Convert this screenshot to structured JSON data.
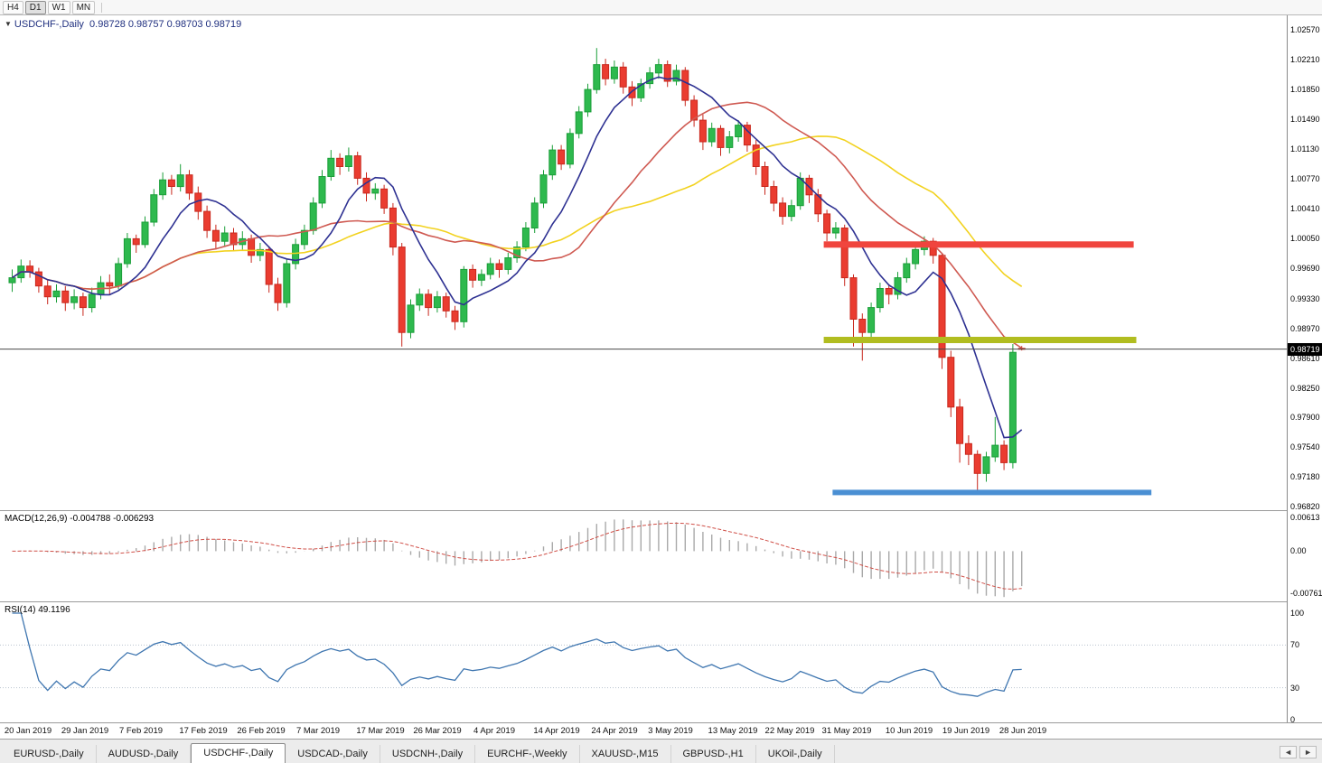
{
  "toolbar": {
    "timeframe_buttons": [
      {
        "label": "H4",
        "active": false
      },
      {
        "label": "D1",
        "active": true
      },
      {
        "label": "W1",
        "active": false
      },
      {
        "label": "MN",
        "active": false
      }
    ]
  },
  "chart_header": {
    "collapse_icon": "▼",
    "title": "USDCHF-,Daily",
    "ohlc": "0.98728 0.98757 0.98703 0.98719"
  },
  "price_axis": {
    "labels": [
      "1.02570",
      "1.02210",
      "1.01850",
      "1.01490",
      "1.01130",
      "1.00770",
      "1.00410",
      "1.00050",
      "0.99690",
      "0.99330",
      "0.98970",
      "0.98610",
      "0.98250",
      "0.97900",
      "0.97540",
      "0.97180",
      "0.96820"
    ],
    "current_price": "0.98719"
  },
  "macd_panel": {
    "label": "MACD(12,26,9) -0.004788 -0.006293",
    "axis_labels": [
      "0.00613",
      "0.00",
      "-0.007612"
    ],
    "axis_values": [
      0.00613,
      0,
      -0.007612
    ]
  },
  "rsi_panel": {
    "label": "RSI(14) 49.1196",
    "axis_labels": [
      "100",
      "70",
      "30",
      "0"
    ],
    "axis_values": [
      100,
      70,
      30,
      0
    ],
    "levels": [
      70,
      30
    ]
  },
  "tabs": {
    "items": [
      {
        "label": "EURUSD-,Daily",
        "active": false
      },
      {
        "label": "AUDUSD-,Daily",
        "active": false
      },
      {
        "label": "USDCHF-,Daily",
        "active": true
      },
      {
        "label": "USDCAD-,Daily",
        "active": false
      },
      {
        "label": "USDCNH-,Daily",
        "active": false
      },
      {
        "label": "EURCHF-,Weekly",
        "active": false
      },
      {
        "label": "XAUUSD-,M15",
        "active": false
      },
      {
        "label": "GBPUSD-,H1",
        "active": false
      },
      {
        "label": "UKOil-,Daily",
        "active": false
      }
    ],
    "scroll_left": "◄",
    "scroll_right": "►"
  },
  "chart_data": {
    "type": "candlestick",
    "symbol": "USDCHF",
    "timeframe": "Daily",
    "current_price": 0.98719,
    "price_range": {
      "max": 1.02744,
      "min": 0.96777
    },
    "candles": [
      [
        0.9952,
        0.9968,
        0.9941,
        0.9958
      ],
      [
        0.9958,
        0.998,
        0.9952,
        0.9972
      ],
      [
        0.9972,
        0.9979,
        0.9958,
        0.9965
      ],
      [
        0.9965,
        0.997,
        0.994,
        0.9948
      ],
      [
        0.9948,
        0.9955,
        0.9926,
        0.9935
      ],
      [
        0.9935,
        0.995,
        0.9928,
        0.9942
      ],
      [
        0.9942,
        0.9948,
        0.9918,
        0.9928
      ],
      [
        0.9928,
        0.9944,
        0.992,
        0.9935
      ],
      [
        0.9935,
        0.994,
        0.9912,
        0.9922
      ],
      [
        0.9922,
        0.9946,
        0.9916,
        0.9938
      ],
      [
        0.9938,
        0.996,
        0.9932,
        0.9952
      ],
      [
        0.9952,
        0.9962,
        0.9938,
        0.9948
      ],
      [
        0.9948,
        0.9982,
        0.9944,
        0.9975
      ],
      [
        0.9975,
        1.0012,
        0.997,
        1.0005
      ],
      [
        1.0005,
        1.001,
        0.9988,
        0.9998
      ],
      [
        0.9998,
        1.0032,
        0.9994,
        1.0025
      ],
      [
        1.0025,
        1.0065,
        1.002,
        1.0058
      ],
      [
        1.0058,
        1.0085,
        1.0052,
        1.0076
      ],
      [
        1.0076,
        1.0082,
        1.0058,
        1.0068
      ],
      [
        1.0068,
        1.0095,
        1.0062,
        1.0082
      ],
      [
        1.0082,
        1.0088,
        1.0052,
        1.006
      ],
      [
        1.006,
        1.0068,
        1.0028,
        1.0038
      ],
      [
        1.0038,
        1.0045,
        1.0006,
        1.0015
      ],
      [
        1.0015,
        1.0022,
        0.9992,
        1.0002
      ],
      [
        1.0002,
        1.002,
        0.9996,
        1.0012
      ],
      [
        1.0012,
        1.0018,
        0.999,
        0.9998
      ],
      [
        0.9998,
        1.0014,
        0.9992,
        1.0005
      ],
      [
        1.0005,
        1.001,
        0.9976,
        0.9985
      ],
      [
        0.9985,
        1.0,
        0.9978,
        0.9992
      ],
      [
        0.9992,
        0.9996,
        0.994,
        0.995
      ],
      [
        0.995,
        0.9958,
        0.9918,
        0.9928
      ],
      [
        0.9928,
        0.998,
        0.9922,
        0.9975
      ],
      [
        0.9975,
        1.0005,
        0.9968,
        0.9998
      ],
      [
        0.9998,
        1.0022,
        0.9992,
        1.0015
      ],
      [
        1.0015,
        1.0055,
        1.001,
        1.0048
      ],
      [
        1.0048,
        1.0088,
        1.0042,
        1.008
      ],
      [
        1.008,
        1.0112,
        1.0075,
        1.0102
      ],
      [
        1.0102,
        1.0108,
        1.0082,
        1.0092
      ],
      [
        1.0092,
        1.0115,
        1.0086,
        1.0105
      ],
      [
        1.0105,
        1.011,
        1.007,
        1.0078
      ],
      [
        1.0078,
        1.0085,
        1.005,
        1.006
      ],
      [
        1.006,
        1.0072,
        1.0052,
        1.0065
      ],
      [
        1.0065,
        1.007,
        1.0035,
        1.0042
      ],
      [
        1.0042,
        1.0048,
        0.9985,
        0.9995
      ],
      [
        0.9995,
        1.0,
        0.9875,
        0.9892
      ],
      [
        0.9892,
        0.9932,
        0.9885,
        0.9925
      ],
      [
        0.9925,
        0.9945,
        0.9918,
        0.9938
      ],
      [
        0.9938,
        0.9944,
        0.9912,
        0.9922
      ],
      [
        0.9922,
        0.9942,
        0.9916,
        0.9935
      ],
      [
        0.9935,
        0.994,
        0.991,
        0.9918
      ],
      [
        0.9918,
        0.9924,
        0.9895,
        0.9905
      ],
      [
        0.9905,
        0.9972,
        0.9898,
        0.9968
      ],
      [
        0.9968,
        0.9974,
        0.9946,
        0.9955
      ],
      [
        0.9955,
        0.9968,
        0.9948,
        0.9962
      ],
      [
        0.9962,
        0.9982,
        0.9956,
        0.9975
      ],
      [
        0.9975,
        0.998,
        0.9958,
        0.9968
      ],
      [
        0.9968,
        0.9988,
        0.9962,
        0.9982
      ],
      [
        0.9982,
        1.0002,
        0.9976,
        0.9995
      ],
      [
        0.9995,
        1.0025,
        0.999,
        1.0018
      ],
      [
        1.0018,
        1.0055,
        1.0012,
        1.0048
      ],
      [
        1.0048,
        1.0088,
        1.0042,
        1.0082
      ],
      [
        1.0082,
        1.0118,
        1.0076,
        1.0112
      ],
      [
        1.0112,
        1.0118,
        1.0088,
        1.0095
      ],
      [
        1.0095,
        1.0138,
        1.009,
        1.0132
      ],
      [
        1.0132,
        1.0165,
        1.0126,
        1.0158
      ],
      [
        1.0158,
        1.0192,
        1.0152,
        1.0185
      ],
      [
        1.0185,
        1.0235,
        1.018,
        1.0215
      ],
      [
        1.0215,
        1.0222,
        1.019,
        1.0198
      ],
      [
        1.0198,
        1.022,
        1.0192,
        1.0212
      ],
      [
        1.0212,
        1.0218,
        1.018,
        1.0188
      ],
      [
        1.0188,
        1.0195,
        1.0165,
        1.0175
      ],
      [
        1.0175,
        1.0198,
        1.017,
        1.0192
      ],
      [
        1.0192,
        1.0212,
        1.0186,
        1.0205
      ],
      [
        1.0205,
        1.0222,
        1.0198,
        1.0215
      ],
      [
        1.0215,
        1.022,
        1.0188,
        1.0195
      ],
      [
        1.0195,
        1.0215,
        1.019,
        1.0208
      ],
      [
        1.0208,
        1.0212,
        1.0165,
        1.0172
      ],
      [
        1.0172,
        1.0178,
        1.014,
        1.0148
      ],
      [
        1.0148,
        1.0155,
        1.0112,
        1.0122
      ],
      [
        1.0122,
        1.0145,
        1.0116,
        1.0138
      ],
      [
        1.0138,
        1.0142,
        1.0105,
        1.0115
      ],
      [
        1.0115,
        1.0135,
        1.0108,
        1.0128
      ],
      [
        1.0128,
        1.0148,
        1.0122,
        1.0142
      ],
      [
        1.0142,
        1.0146,
        1.011,
        1.0118
      ],
      [
        1.0118,
        1.0124,
        1.0082,
        1.0092
      ],
      [
        1.0092,
        1.0098,
        1.0058,
        1.0068
      ],
      [
        1.0068,
        1.0075,
        1.0038,
        1.0048
      ],
      [
        1.0048,
        1.0055,
        1.0022,
        1.0032
      ],
      [
        1.0032,
        1.0052,
        1.0026,
        1.0045
      ],
      [
        1.0045,
        1.0085,
        1.004,
        1.0078
      ],
      [
        1.0078,
        1.0082,
        1.0048,
        1.0058
      ],
      [
        1.0058,
        1.0065,
        1.0025,
        1.0035
      ],
      [
        1.0035,
        1.004,
        1.0002,
        1.0012
      ],
      [
        1.0012,
        1.0025,
        1.0005,
        1.0018
      ],
      [
        1.0018,
        1.0022,
        0.9948,
        0.9958
      ],
      [
        0.9958,
        0.9962,
        0.9875,
        0.9908
      ],
      [
        0.9908,
        0.9915,
        0.9858,
        0.9892
      ],
      [
        0.9892,
        0.9928,
        0.9886,
        0.9922
      ],
      [
        0.9922,
        0.9952,
        0.9916,
        0.9945
      ],
      [
        0.9945,
        0.995,
        0.9926,
        0.9938
      ],
      [
        0.9938,
        0.9965,
        0.9932,
        0.9958
      ],
      [
        0.9958,
        0.9982,
        0.9952,
        0.9975
      ],
      [
        0.9975,
        0.9998,
        0.9968,
        0.9992
      ],
      [
        0.9992,
        1.0008,
        0.9985,
        1.0002
      ],
      [
        1.0002,
        1.0006,
        0.9975,
        0.9985
      ],
      [
        0.9985,
        0.9988,
        0.9848,
        0.9862
      ],
      [
        0.9862,
        0.987,
        0.979,
        0.9802
      ],
      [
        0.9802,
        0.9812,
        0.9735,
        0.9758
      ],
      [
        0.9758,
        0.9768,
        0.9732,
        0.9745
      ],
      [
        0.9745,
        0.975,
        0.9697,
        0.9722
      ],
      [
        0.9722,
        0.9748,
        0.9712,
        0.9742
      ],
      [
        0.9742,
        0.979,
        0.9736,
        0.9756
      ],
      [
        0.9756,
        0.9762,
        0.9726,
        0.9735
      ],
      [
        0.9735,
        0.9878,
        0.9728,
        0.9868
      ],
      [
        0.98728,
        0.98757,
        0.98703,
        0.98719
      ]
    ],
    "date_labels": [
      {
        "label": "20 Jan 2019",
        "i": 1.8
      },
      {
        "label": "29 Jan 2019",
        "i": 8.2
      },
      {
        "label": "7 Feb 2019",
        "i": 14.5
      },
      {
        "label": "17 Feb 2019",
        "i": 21.6
      },
      {
        "label": "26 Feb 2019",
        "i": 28.1
      },
      {
        "label": "7 Mar 2019",
        "i": 34.5
      },
      {
        "label": "17 Mar 2019",
        "i": 41.6
      },
      {
        "label": "26 Mar 2019",
        "i": 48.0
      },
      {
        "label": "4 Apr 2019",
        "i": 54.4
      },
      {
        "label": "14 Apr 2019",
        "i": 61.5
      },
      {
        "label": "24 Apr 2019",
        "i": 68.0
      },
      {
        "label": "3 May 2019",
        "i": 74.3
      },
      {
        "label": "13 May 2019",
        "i": 81.4
      },
      {
        "label": "22 May 2019",
        "i": 87.8
      },
      {
        "label": "31 May 2019",
        "i": 94.2
      },
      {
        "label": "10 Jun 2019",
        "i": 101.3
      },
      {
        "label": "19 Jun 2019",
        "i": 107.7
      },
      {
        "label": "28 Jun 2019",
        "i": 114.1
      }
    ],
    "horizontal_levels": [
      {
        "name": "resistance-line-red",
        "price": 0.9998,
        "color": "#f0453e",
        "from": 92,
        "to": 127,
        "thickness": 7
      },
      {
        "name": "mid-line-olive",
        "price": 0.9883,
        "color": "#b1bd20",
        "from": 92,
        "to": 127.3,
        "thickness": 7
      },
      {
        "name": "support-line-blue",
        "price": 0.9699,
        "color": "#4a8fd3",
        "from": 93,
        "to": 129,
        "thickness": 6
      }
    ],
    "moving_averages": [
      {
        "name": "ma-slow",
        "period": 34,
        "color": "#f2d21f"
      },
      {
        "name": "ma-mid",
        "period": 21,
        "color": "#cf5a52"
      },
      {
        "name": "ma-fast",
        "period": 8,
        "color": "#2e3192"
      }
    ],
    "macd": {
      "fast": 12,
      "slow": 26,
      "signal": 9,
      "value": -0.004788,
      "signal_value": -0.006293,
      "range": {
        "max": 0.0072,
        "min": -0.009
      }
    },
    "rsi": {
      "period": 14,
      "value": 49.1196,
      "range": {
        "max": 100,
        "min": 0
      }
    },
    "colors": {
      "bull": "#2eb94e",
      "bull_border": "#1a9e38",
      "bear": "#ea3c30",
      "bear_border": "#c8271c",
      "histogram": "#a9a9a9",
      "macd_signal": "#d05048",
      "rsi_line": "#3f76b0",
      "current_price_line": "#4a4a4a"
    }
  }
}
